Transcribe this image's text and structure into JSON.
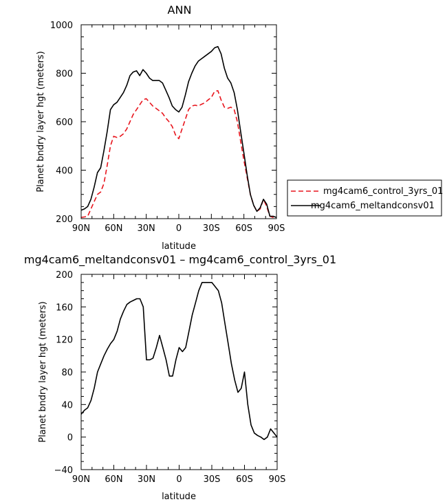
{
  "chart_data": [
    {
      "type": "line",
      "title": "ANN",
      "xlabel": "latitude",
      "ylabel": "Planet bndry layer hgt (meters)",
      "xlim": [
        90,
        -90
      ],
      "ylim": [
        200,
        1000
      ],
      "x_ticks": [
        90,
        60,
        30,
        0,
        -30,
        -60,
        -90
      ],
      "x_tick_labels": [
        "90N",
        "60N",
        "30N",
        "0",
        "30S",
        "60S",
        "90S"
      ],
      "y_ticks": [
        200,
        400,
        600,
        800,
        1000
      ],
      "y_tick_labels": [
        "200",
        "400",
        "600",
        "800",
        "1000"
      ],
      "grid": false,
      "legend": "right",
      "series": [
        {
          "name": "mg4cam6_control_3yrs_01",
          "color": "#e8141c",
          "dash": "dashed",
          "x": [
            90,
            87,
            84,
            81,
            78,
            75,
            72,
            69,
            66,
            63,
            60,
            57,
            54,
            51,
            48,
            45,
            42,
            39,
            36,
            33,
            30,
            27,
            24,
            21,
            18,
            15,
            12,
            9,
            6,
            3,
            0,
            -3,
            -6,
            -9,
            -12,
            -15,
            -18,
            -21,
            -24,
            -27,
            -30,
            -33,
            -36,
            -39,
            -42,
            -45,
            -48,
            -51,
            -54,
            -57,
            -60,
            -63,
            -66,
            -69,
            -72,
            -75,
            -78,
            -81,
            -84,
            -87,
            -90
          ],
          "y": [
            205,
            207,
            210,
            240,
            270,
            300,
            310,
            345,
            420,
            500,
            540,
            535,
            540,
            550,
            570,
            600,
            630,
            650,
            670,
            690,
            695,
            680,
            665,
            655,
            645,
            635,
            615,
            600,
            580,
            545,
            530,
            570,
            610,
            650,
            665,
            668,
            665,
            672,
            678,
            690,
            700,
            725,
            728,
            690,
            660,
            655,
            660,
            650,
            600,
            520,
            440,
            370,
            300,
            255,
            230,
            240,
            280,
            250,
            210,
            205,
            205
          ]
        },
        {
          "name": "mg4cam6_meltandconsv01",
          "color": "#000000",
          "dash": "solid",
          "x": [
            90,
            87,
            84,
            81,
            78,
            75,
            72,
            69,
            66,
            63,
            60,
            57,
            54,
            51,
            48,
            45,
            42,
            39,
            36,
            33,
            30,
            27,
            24,
            21,
            18,
            15,
            12,
            9,
            6,
            3,
            0,
            -3,
            -6,
            -9,
            -12,
            -15,
            -18,
            -21,
            -24,
            -27,
            -30,
            -33,
            -36,
            -39,
            -42,
            -45,
            -48,
            -51,
            -54,
            -57,
            -60,
            -63,
            -66,
            -69,
            -72,
            -75,
            -78,
            -81,
            -84,
            -87,
            -90
          ],
          "y": [
            235,
            240,
            250,
            280,
            330,
            390,
            410,
            480,
            560,
            650,
            670,
            680,
            700,
            720,
            750,
            790,
            805,
            810,
            790,
            815,
            800,
            780,
            770,
            770,
            770,
            760,
            730,
            700,
            665,
            650,
            640,
            660,
            710,
            765,
            800,
            830,
            850,
            860,
            870,
            880,
            890,
            905,
            910,
            880,
            820,
            780,
            760,
            720,
            650,
            560,
            470,
            380,
            300,
            255,
            230,
            245,
            280,
            260,
            210,
            210,
            205
          ]
        }
      ]
    },
    {
      "type": "line",
      "title": "mg4cam6_meltandconsv01 – mg4cam6_control_3yrs_01",
      "xlabel": "latitude",
      "ylabel": "Planet bndry layer hgt (meters)",
      "xlim": [
        90,
        -90
      ],
      "ylim": [
        -40,
        200
      ],
      "x_ticks": [
        90,
        60,
        30,
        0,
        -30,
        -60,
        -90
      ],
      "x_tick_labels": [
        "90N",
        "60N",
        "30N",
        "0",
        "30S",
        "60S",
        "90S"
      ],
      "y_ticks": [
        -40,
        0,
        40,
        80,
        120,
        160,
        200
      ],
      "y_tick_labels": [
        "−40",
        "0",
        "40",
        "80",
        "120",
        "160",
        "200"
      ],
      "grid": false,
      "series": [
        {
          "color": "#000000",
          "dash": "solid",
          "x": [
            90,
            87,
            84,
            81,
            78,
            75,
            72,
            69,
            66,
            63,
            60,
            57,
            54,
            51,
            48,
            45,
            42,
            39,
            36,
            33,
            30,
            27,
            24,
            21,
            18,
            15,
            12,
            9,
            6,
            3,
            0,
            -3,
            -6,
            -9,
            -12,
            -15,
            -18,
            -21,
            -24,
            -27,
            -30,
            -33,
            -36,
            -39,
            -42,
            -45,
            -48,
            -51,
            -54,
            -57,
            -60,
            -63,
            -66,
            -69,
            -72,
            -75,
            -78,
            -81,
            -84,
            -87,
            -90
          ],
          "y": [
            28,
            33,
            36,
            45,
            60,
            80,
            90,
            100,
            108,
            115,
            120,
            130,
            145,
            155,
            163,
            166,
            168,
            170,
            170,
            160,
            95,
            95,
            97,
            110,
            125,
            110,
            95,
            75,
            75,
            95,
            110,
            105,
            110,
            130,
            150,
            165,
            180,
            190,
            190,
            190,
            190,
            185,
            180,
            165,
            140,
            115,
            90,
            70,
            55,
            60,
            80,
            40,
            15,
            5,
            2,
            0,
            -3,
            0,
            10,
            5,
            0
          ]
        }
      ]
    }
  ]
}
